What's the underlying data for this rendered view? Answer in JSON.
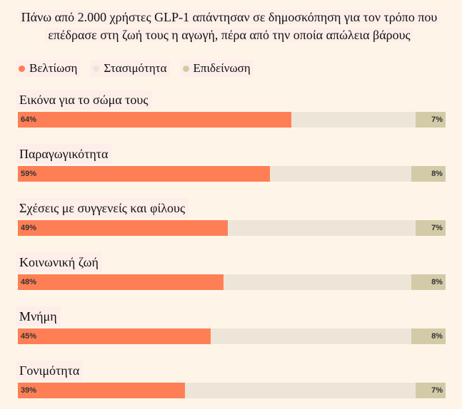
{
  "chart_data": {
    "type": "stacked-bar-horizontal",
    "title": "Πάνω από 2.000 χρήστες GLP-1 απάντησαν σε δημοσκόπηση για τον τρόπο που επέδρασε στη ζωή τους η αγωγή, πέρα από την οποία απώλεια βάρους",
    "categories": [
      "Εικόνα για το σώμα τους",
      "Παραγωγικότητα",
      "Σχέσεις με συγγενείς και φίλους",
      "Κοινωνική ζωή",
      "Μνήμη",
      "Γονιμότητα"
    ],
    "series": [
      {
        "name": "Βελτίωση",
        "color": "#fe7f55",
        "values": [
          64,
          59,
          49,
          48,
          45,
          39
        ],
        "value_labels": [
          "64%",
          "59%",
          "49%",
          "48%",
          "45%",
          "39%"
        ]
      },
      {
        "name": "Στασιμότητα",
        "color": "#ede6d8",
        "values": [
          29,
          33,
          44,
          44,
          47,
          54
        ]
      },
      {
        "name": "Επιδείνωση",
        "color": "#d3cba8",
        "values": [
          7,
          8,
          7,
          8,
          8,
          7
        ],
        "value_labels": [
          "7%",
          "8%",
          "7%",
          "8%",
          "8%",
          "7%"
        ]
      }
    ]
  }
}
